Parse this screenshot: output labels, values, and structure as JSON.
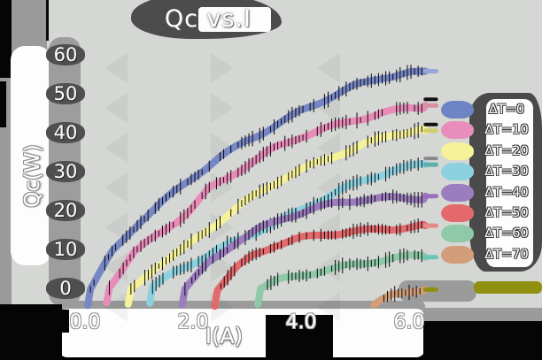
{
  "title": "Qc vs.I",
  "palette": {
    "background_black": "#000000",
    "panel_gray": "#d4d7d3",
    "shadow_gray": "#9b9b9b",
    "blob_dark_gray": "#4a4a4a",
    "text_white": "#ffffff",
    "error_bar_black": "#0a0a0a",
    "stray_olive_bar": "#8f8f10"
  },
  "legend": [
    {
      "label": "ΔT=0",
      "color": "#6e84c4"
    },
    {
      "label": "ΔT=10",
      "color": "#e98ebc"
    },
    {
      "label": "ΔT=20",
      "color": "#f6f29a"
    },
    {
      "label": "ΔT=30",
      "color": "#8cd1e0"
    },
    {
      "label": "ΔT=40",
      "color": "#9b7cbe"
    },
    {
      "label": "ΔT=50",
      "color": "#e4696d"
    },
    {
      "label": "ΔT=60",
      "color": "#8fc9a8"
    },
    {
      "label": "ΔT=70",
      "color": "#d29d78"
    }
  ],
  "chart_data": {
    "type": "line",
    "title": "Qc vs.I",
    "xlabel": "I(A)",
    "ylabel": "Qc(W)",
    "x_ticks": [
      "0.0",
      "2.0",
      "4.0",
      "6.0"
    ],
    "x_tick_values": [
      0.0,
      2.0,
      4.0,
      6.0
    ],
    "y_ticks": [
      "60",
      "50",
      "40",
      "30",
      "20",
      "10",
      "0"
    ],
    "y_tick_values": [
      60,
      50,
      40,
      30,
      20,
      10,
      0
    ],
    "xlim": [
      -0.55,
      6.85
    ],
    "ylim": [
      -4.8,
      64.5
    ],
    "grid": false,
    "legend_position": "right",
    "error_bars": true,
    "style": "xkcd-sketch",
    "series": [
      {
        "name": "ΔT=0",
        "color": "#7787c5",
        "cap_color": "#9aa2d8",
        "cap_dash": null,
        "points": [
          [
            0.05,
            -4
          ],
          [
            0.1,
            0
          ],
          [
            0.5,
            9
          ],
          [
            1.0,
            16.5
          ],
          [
            1.5,
            22.5
          ],
          [
            2.0,
            28.5
          ],
          [
            2.5,
            34
          ],
          [
            3.0,
            38.5
          ],
          [
            3.5,
            42
          ],
          [
            4.0,
            45.5
          ],
          [
            4.5,
            48.5
          ],
          [
            5.0,
            51.5
          ],
          [
            5.5,
            54
          ],
          [
            6.0,
            55.5
          ],
          [
            6.3,
            55.8
          ]
        ]
      },
      {
        "name": "ΔT=10",
        "color": "#e98bb9",
        "cap_color": "#d98fa2",
        "cap_dash": "#111111",
        "points": [
          [
            0.4,
            -4
          ],
          [
            0.45,
            0
          ],
          [
            0.9,
            9
          ],
          [
            1.4,
            14.5
          ],
          [
            1.9,
            20
          ],
          [
            2.3,
            26
          ],
          [
            2.8,
            30
          ],
          [
            3.5,
            35.5
          ],
          [
            4.0,
            38.5
          ],
          [
            4.5,
            41
          ],
          [
            5.0,
            43.5
          ],
          [
            5.5,
            45.5
          ],
          [
            6.0,
            46.8
          ],
          [
            6.3,
            47
          ]
        ]
      },
      {
        "name": "ΔT=20",
        "color": "#f6f29a",
        "cap_color": "#cfcf6f",
        "cap_dash": "#111111",
        "points": [
          [
            0.8,
            -4
          ],
          [
            0.85,
            0
          ],
          [
            1.3,
            6
          ],
          [
            1.8,
            10
          ],
          [
            2.2,
            14
          ],
          [
            2.7,
            19
          ],
          [
            3.2,
            24
          ],
          [
            3.7,
            28.5
          ],
          [
            4.2,
            32
          ],
          [
            4.7,
            35
          ],
          [
            5.2,
            37.5
          ],
          [
            5.7,
            39.5
          ],
          [
            6.3,
            40.5
          ]
        ]
      },
      {
        "name": "ΔT=30",
        "color": "#8cd1e0",
        "cap_color": "#5fb0ab",
        "cap_dash": "#8a8a8a",
        "points": [
          [
            1.2,
            -4
          ],
          [
            1.25,
            0
          ],
          [
            1.7,
            4
          ],
          [
            2.2,
            7.5
          ],
          [
            2.7,
            11.5
          ],
          [
            3.2,
            15
          ],
          [
            3.7,
            18.5
          ],
          [
            4.2,
            22
          ],
          [
            4.7,
            25
          ],
          [
            5.2,
            27.5
          ],
          [
            5.7,
            29.8
          ],
          [
            6.3,
            31.8
          ]
        ]
      },
      {
        "name": "ΔT=40",
        "color": "#9b7cbe",
        "cap_color": "#9a70c0",
        "cap_dash": null,
        "points": [
          [
            1.8,
            -4
          ],
          [
            1.85,
            0
          ],
          [
            2.3,
            7
          ],
          [
            2.8,
            12.5
          ],
          [
            3.2,
            15.5
          ],
          [
            3.7,
            18
          ],
          [
            4.2,
            20
          ],
          [
            4.7,
            21.5
          ],
          [
            5.2,
            22.7
          ],
          [
            5.7,
            23.4
          ],
          [
            6.3,
            23.7
          ]
        ]
      },
      {
        "name": "ΔT=50",
        "color": "#e4696d",
        "cap_color": "#e18a8a",
        "cap_dash": null,
        "points": [
          [
            2.4,
            -4
          ],
          [
            2.45,
            0
          ],
          [
            2.8,
            5
          ],
          [
            3.1,
            8
          ],
          [
            3.5,
            10.5
          ],
          [
            4.0,
            12.5
          ],
          [
            4.5,
            14
          ],
          [
            5.0,
            15
          ],
          [
            5.5,
            15.7
          ],
          [
            6.0,
            16
          ],
          [
            6.3,
            16.1
          ]
        ]
      },
      {
        "name": "ΔT=60",
        "color": "#8fc9a8",
        "cap_color": "#68c6b2",
        "cap_dash": null,
        "points": [
          [
            3.2,
            -4
          ],
          [
            3.25,
            0
          ],
          [
            3.6,
            2.2
          ],
          [
            4.0,
            3.8
          ],
          [
            4.4,
            5
          ],
          [
            4.9,
            6.2
          ],
          [
            5.4,
            7
          ],
          [
            5.9,
            7.6
          ],
          [
            6.3,
            8
          ]
        ]
      },
      {
        "name": "ΔT=70",
        "color": "#d29d78",
        "cap_color": "#8f8f10",
        "cap_dash": null,
        "points": [
          [
            5.35,
            -5
          ],
          [
            5.4,
            -4.5
          ],
          [
            5.7,
            -2
          ],
          [
            6.0,
            -0.8
          ],
          [
            6.2,
            -0.4
          ],
          [
            6.3,
            -0.3
          ]
        ]
      }
    ]
  }
}
